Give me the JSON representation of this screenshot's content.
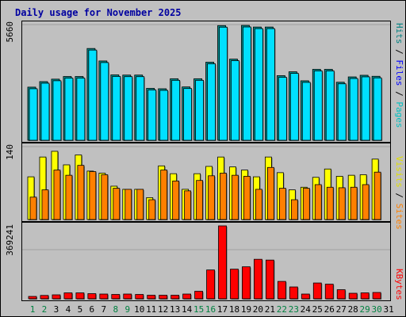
{
  "title": "Daily usage for November 2025",
  "panels": {
    "hits": {
      "max_label": "5660",
      "legend": [
        {
          "text": "Pages",
          "color": "#00c0c0"
        },
        {
          "text": "Files",
          "color": "#0000ff"
        },
        {
          "text": "Hits",
          "color": "#008080"
        }
      ]
    },
    "sites": {
      "max_label": "140",
      "legend": [
        {
          "text": "Sites",
          "color": "#ff8000"
        },
        {
          "text": "Visits",
          "color": "#e0e000"
        }
      ]
    },
    "kbytes": {
      "max_label": "369241",
      "legend": [
        {
          "text": "KBytes",
          "color": "#ff0000"
        }
      ]
    }
  },
  "colors": {
    "weekday_label": "#000000",
    "weekend_label": "#008040",
    "hits": "#009090",
    "pages": "#00e0ff",
    "visits": "#ffff00",
    "sites": "#ff8000",
    "kbytes": "#ff0000"
  },
  "chart_data": {
    "type": "bar",
    "days": [
      "1",
      "2",
      "3",
      "4",
      "5",
      "6",
      "7",
      "8",
      "9",
      "10",
      "11",
      "12",
      "13",
      "14",
      "15",
      "16",
      "17",
      "18",
      "19",
      "20",
      "21",
      "22",
      "23",
      "24",
      "25",
      "26",
      "27",
      "28",
      "29",
      "30",
      "31"
    ],
    "weekend_days": [
      "1",
      "2",
      "8",
      "9",
      "15",
      "16",
      "22",
      "23",
      "29",
      "30"
    ],
    "series": [
      {
        "name": "Hits",
        "values": [
          2600,
          2870,
          2990,
          3120,
          3120,
          4490,
          3880,
          3200,
          3190,
          3190,
          2540,
          2520,
          3010,
          2610,
          3010,
          3820,
          5610,
          3970,
          5620,
          5540,
          5540,
          3160,
          3350,
          2910,
          3470,
          3470,
          2840,
          3100,
          3180,
          3130,
          null
        ]
      },
      {
        "name": "Pages",
        "values": [
          2600,
          2870,
          2990,
          3120,
          3120,
          4490,
          3880,
          3200,
          3190,
          3190,
          2540,
          2520,
          3010,
          2610,
          3010,
          3820,
          5610,
          3970,
          5620,
          5540,
          5540,
          3160,
          3350,
          2910,
          3470,
          3470,
          2840,
          3100,
          3180,
          3130,
          null
        ]
      },
      {
        "name": "Visits",
        "values": [
          82,
          120,
          131,
          105,
          124,
          93,
          89,
          64,
          58,
          58,
          42,
          103,
          88,
          58,
          88,
          102,
          120,
          101,
          95,
          82,
          120,
          90,
          57,
          62,
          81,
          97,
          83,
          85,
          86,
          116,
          null
        ]
      },
      {
        "name": "Sites",
        "values": [
          43,
          57,
          95,
          85,
          104,
          92,
          86,
          60,
          58,
          58,
          38,
          95,
          74,
          55,
          75,
          84,
          89,
          85,
          83,
          58,
          100,
          60,
          38,
          60,
          67,
          62,
          61,
          62,
          67,
          91,
          null
        ]
      },
      {
        "name": "KBytes",
        "values": [
          12000,
          17000,
          20000,
          30000,
          30000,
          26000,
          24000,
          22000,
          24000,
          22000,
          18000,
          18000,
          18000,
          24000,
          38000,
          146000,
          369241,
          150000,
          162000,
          200000,
          196000,
          88000,
          60000,
          24000,
          80000,
          74000,
          46000,
          28000,
          30000,
          32000,
          null
        ]
      }
    ],
    "ylim_hits": [
      0,
      5660
    ],
    "ylim_sites": [
      0,
      140
    ],
    "ylim_kbytes": [
      0,
      369241
    ]
  }
}
